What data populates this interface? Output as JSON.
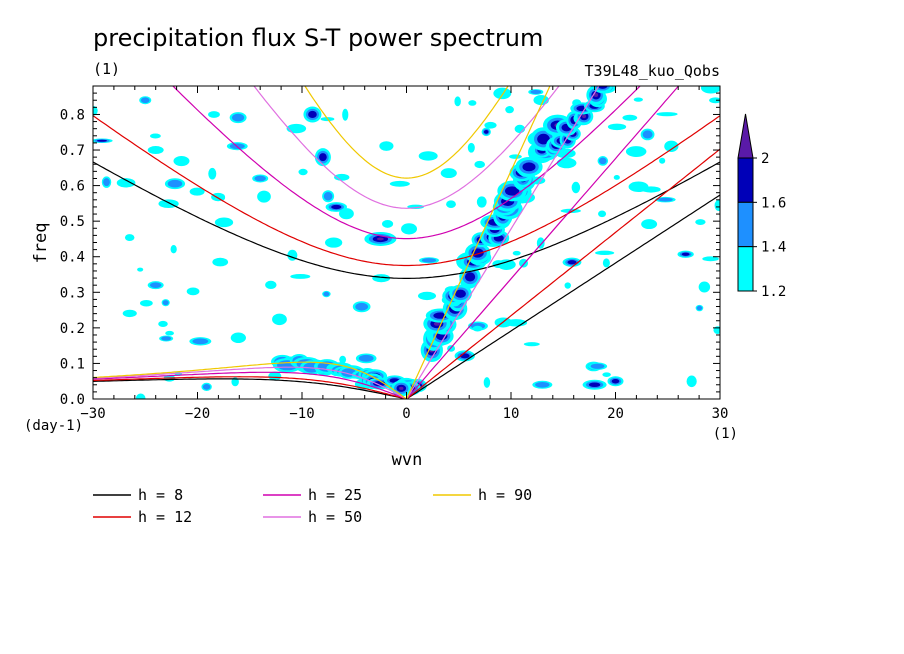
{
  "chart_data": {
    "type": "heatmap",
    "title": "precipitation flux S-T power spectrum",
    "subtitle_left": "(1)",
    "subtitle_right": "T39L48_kuo_Qobs",
    "xlabel": "wvn",
    "ylabel": "freq",
    "x_unit_label": "(1)",
    "y_unit_label": "(day-1)",
    "xlim": [
      -30,
      30
    ],
    "ylim": [
      0,
      0.88
    ],
    "xticks": [
      -30,
      -20,
      -10,
      0,
      10,
      20,
      30
    ],
    "yticks": [
      0.0,
      0.1,
      0.2,
      0.3,
      0.4,
      0.5,
      0.6,
      0.7,
      0.8
    ],
    "ytick_labels": [
      "0.0",
      "0.1",
      "0.2",
      "0.3",
      "0.4",
      "0.5",
      "0.6",
      "0.7",
      "0.8"
    ],
    "colorbar": {
      "levels": [
        1.2,
        1.4,
        1.6,
        2
      ],
      "colors": [
        "#00ffff",
        "#1e90ff",
        "#0000b8",
        "#5a1aa8"
      ],
      "labels": [
        "1.2",
        "1.4",
        "1.6",
        "2"
      ]
    },
    "dispersion_curves": [
      {
        "label": "h =  8",
        "h": 8,
        "color": "#000000"
      },
      {
        "label": "h = 12",
        "h": 12,
        "color": "#e00000"
      },
      {
        "label": "h = 25",
        "h": 25,
        "color": "#d000b0"
      },
      {
        "label": "h = 50",
        "h": 50,
        "color": "#e070e0"
      },
      {
        "label": "h = 90",
        "h": 90,
        "color": "#f0c800"
      }
    ],
    "spectral_features": [
      {
        "name": "kelvin-ridge",
        "wvn": [
          2,
          5,
          8,
          11,
          14
        ],
        "freq": [
          0.15,
          0.3,
          0.45,
          0.6,
          0.78
        ],
        "level": 1.6
      },
      {
        "name": "kelvin-ridge-upper",
        "wvn": [
          14,
          16,
          18,
          19
        ],
        "freq": [
          0.72,
          0.8,
          0.86,
          0.88
        ],
        "level": 1.6
      },
      {
        "name": "mjo-low-frequency",
        "wvn": [
          -3,
          -1,
          0,
          1
        ],
        "freq": [
          0.05,
          0.03,
          0.02,
          0.04
        ],
        "level": 1.6
      },
      {
        "name": "eastward-inertia-gravity",
        "wvn": [
          -1,
          -2,
          -3
        ],
        "freq": [
          0.47,
          0.45,
          0.44
        ],
        "level": 1.6
      },
      {
        "name": "westward-band-high",
        "wvn": [
          -11,
          -9,
          -8
        ],
        "freq": [
          0.82,
          0.72,
          0.66
        ],
        "level": 1.4
      }
    ]
  }
}
